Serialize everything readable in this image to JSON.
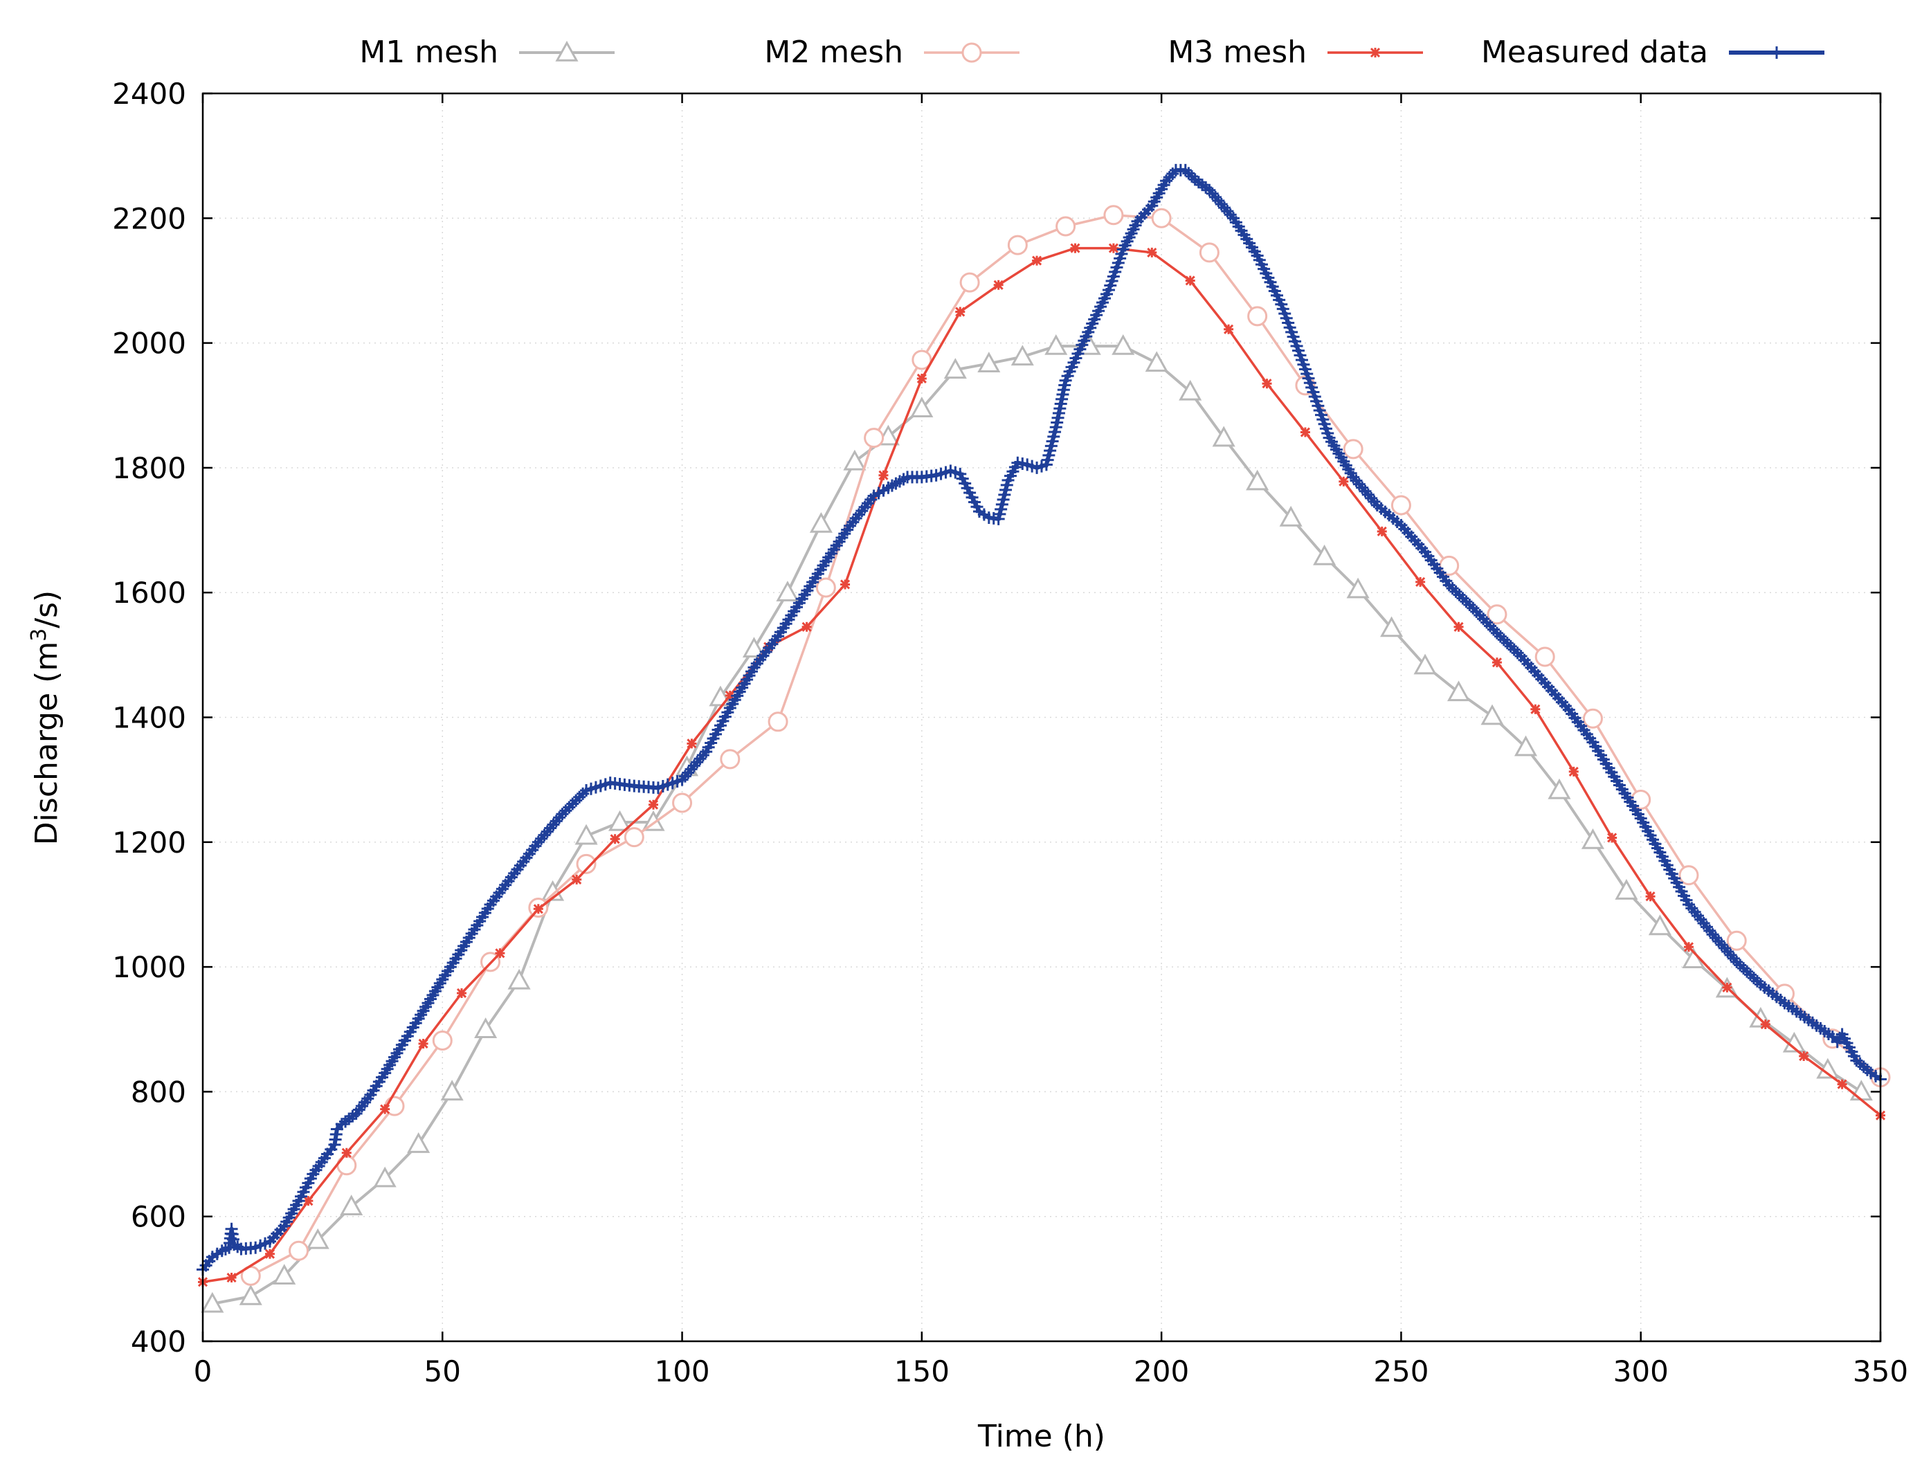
{
  "chart_data": {
    "type": "line",
    "title": "",
    "xlabel": "Time (h)",
    "ylabel_main": "Discharge (m",
    "ylabel_sup": "3",
    "ylabel_tail": "/s)",
    "xlim": [
      0,
      350
    ],
    "ylim": [
      400,
      2400
    ],
    "xticks": [
      0,
      50,
      100,
      150,
      200,
      250,
      300,
      350
    ],
    "yticks": [
      400,
      600,
      800,
      1000,
      1200,
      1400,
      1600,
      1800,
      2000,
      2200,
      2400
    ],
    "grid": true,
    "legend_position": "top",
    "series": [
      {
        "name": "M1 mesh",
        "color": "#b8b8b8",
        "marker": "triangle",
        "x": [
          2,
          10,
          17,
          24,
          31,
          38,
          45,
          52,
          59,
          66,
          73,
          80,
          87,
          94,
          101,
          108,
          115,
          122,
          129,
          136,
          143,
          150,
          157,
          164,
          171,
          178,
          185,
          192,
          199,
          206,
          213,
          220,
          227,
          234,
          241,
          248,
          255,
          262,
          269,
          276,
          283,
          290,
          297,
          304,
          311,
          318,
          325,
          332,
          339,
          346
        ],
        "values": [
          460,
          472,
          505,
          562,
          616,
          661,
          716,
          800,
          900,
          978,
          1120,
          1210,
          1232,
          1232,
          1320,
          1432,
          1510,
          1600,
          1710,
          1810,
          1850,
          1895,
          1957,
          1967,
          1978,
          1995,
          1995,
          1995,
          1968,
          1922,
          1848,
          1778,
          1720,
          1658,
          1605,
          1543,
          1483,
          1440,
          1402,
          1352,
          1283,
          1203,
          1122,
          1065,
          1012,
          965,
          917,
          877,
          835,
          800
        ]
      },
      {
        "name": "M2 mesh",
        "color": "#f0b7ae",
        "marker": "circle",
        "x": [
          10,
          20,
          30,
          40,
          50,
          60,
          70,
          80,
          90,
          100,
          110,
          120,
          130,
          140,
          150,
          160,
          170,
          180,
          190,
          200,
          210,
          220,
          230,
          240,
          250,
          260,
          270,
          280,
          290,
          300,
          310,
          320,
          330,
          340,
          350
        ],
        "values": [
          505,
          545,
          682,
          777,
          882,
          1008,
          1095,
          1165,
          1208,
          1263,
          1333,
          1393,
          1608,
          1848,
          1973,
          2097,
          2157,
          2187,
          2205,
          2200,
          2145,
          2043,
          1932,
          1830,
          1740,
          1643,
          1565,
          1497,
          1398,
          1268,
          1147,
          1042,
          957,
          885,
          823
        ]
      },
      {
        "name": "M3 mesh",
        "color": "#e8473a",
        "marker": "star",
        "x": [
          0,
          6,
          14,
          22,
          30,
          38,
          46,
          54,
          62,
          70,
          78,
          86,
          94,
          102,
          110,
          118,
          126,
          134,
          142,
          150,
          158,
          166,
          174,
          182,
          190,
          198,
          206,
          214,
          222,
          230,
          238,
          246,
          254,
          262,
          270,
          278,
          286,
          294,
          302,
          310,
          318,
          326,
          334,
          342,
          350
        ],
        "values": [
          495,
          502,
          540,
          625,
          702,
          772,
          877,
          958,
          1022,
          1093,
          1140,
          1205,
          1260,
          1358,
          1435,
          1513,
          1545,
          1613,
          1788,
          1943,
          2050,
          2093,
          2132,
          2152,
          2152,
          2145,
          2100,
          2022,
          1935,
          1857,
          1778,
          1698,
          1617,
          1545,
          1488,
          1413,
          1313,
          1207,
          1113,
          1032,
          967,
          908,
          857,
          812,
          762
        ]
      },
      {
        "name": "Measured data",
        "color": "#1f3f99",
        "marker": "plus",
        "x": [
          0,
          2,
          4,
          5.5,
          6,
          6.5,
          8,
          11,
          14,
          17,
          20,
          23,
          26,
          27.5,
          28,
          29,
          32,
          35,
          38,
          41,
          45,
          50,
          55,
          60,
          65,
          70,
          75,
          80,
          85,
          90,
          95,
          100,
          105,
          110,
          115,
          120,
          125,
          130,
          135,
          140,
          143,
          147,
          150,
          153,
          156,
          158,
          160,
          162,
          164,
          166,
          168,
          170,
          172,
          174,
          176,
          178,
          180,
          183,
          186,
          189,
          192,
          195,
          198,
          201,
          203,
          205,
          207,
          210,
          215,
          220,
          225,
          230,
          235,
          240,
          245,
          250,
          255,
          260,
          265,
          270,
          275,
          280,
          285,
          290,
          295,
          300,
          305,
          310,
          315,
          320,
          325,
          330,
          335,
          340,
          341,
          342,
          345,
          348,
          350
        ],
        "values": [
          515,
          535,
          545,
          550,
          580,
          555,
          548,
          550,
          560,
          585,
          625,
          668,
          700,
          715,
          740,
          748,
          765,
          795,
          830,
          868,
          917,
          980,
          1040,
          1100,
          1150,
          1200,
          1245,
          1283,
          1295,
          1290,
          1287,
          1300,
          1345,
          1415,
          1480,
          1530,
          1590,
          1650,
          1707,
          1755,
          1768,
          1785,
          1785,
          1788,
          1795,
          1790,
          1760,
          1730,
          1720,
          1718,
          1780,
          1808,
          1805,
          1800,
          1805,
          1865,
          1940,
          1990,
          2038,
          2085,
          2150,
          2195,
          2220,
          2260,
          2277,
          2277,
          2262,
          2245,
          2200,
          2140,
          2062,
          1958,
          1848,
          1785,
          1740,
          1708,
          1665,
          1612,
          1575,
          1535,
          1498,
          1455,
          1412,
          1360,
          1298,
          1238,
          1170,
          1100,
          1052,
          1008,
          972,
          942,
          915,
          888,
          880,
          892,
          850,
          830,
          820
        ]
      }
    ]
  }
}
